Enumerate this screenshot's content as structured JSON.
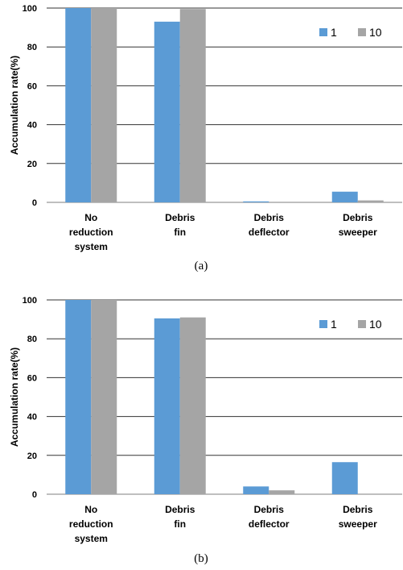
{
  "chart_data": [
    {
      "type": "bar",
      "caption": "(a)",
      "categories": [
        [
          "No",
          "reduction",
          "system"
        ],
        [
          "Debris",
          "fin"
        ],
        [
          "Debris",
          "deflector"
        ],
        [
          "Debris",
          "sweeper"
        ]
      ],
      "series": [
        {
          "name": "1",
          "color": "#5b9bd5",
          "values": [
            100,
            93,
            0.5,
            5.5
          ]
        },
        {
          "name": "10",
          "color": "#a5a5a5",
          "values": [
            100,
            99.5,
            0,
            1
          ]
        }
      ],
      "ylabel": "Accumulation rate(%)",
      "ylim": [
        0,
        100
      ],
      "yticks": [
        0,
        20,
        40,
        60,
        80,
        100
      ],
      "grid": true,
      "legend": "top-right"
    },
    {
      "type": "bar",
      "caption": "(b)",
      "categories": [
        [
          "No",
          "reduction",
          "system"
        ],
        [
          "Debris",
          "fin"
        ],
        [
          "Debris",
          "deflector"
        ],
        [
          "Debris",
          "sweeper"
        ]
      ],
      "series": [
        {
          "name": "1",
          "color": "#5b9bd5",
          "values": [
            100,
            90.5,
            4,
            16.5
          ]
        },
        {
          "name": "10",
          "color": "#a5a5a5",
          "values": [
            100,
            91,
            2,
            0
          ]
        }
      ],
      "ylabel": "Accumulation rate(%)",
      "ylim": [
        0,
        100
      ],
      "yticks": [
        0,
        20,
        40,
        60,
        80,
        100
      ],
      "grid": true,
      "legend": "top-right"
    }
  ]
}
